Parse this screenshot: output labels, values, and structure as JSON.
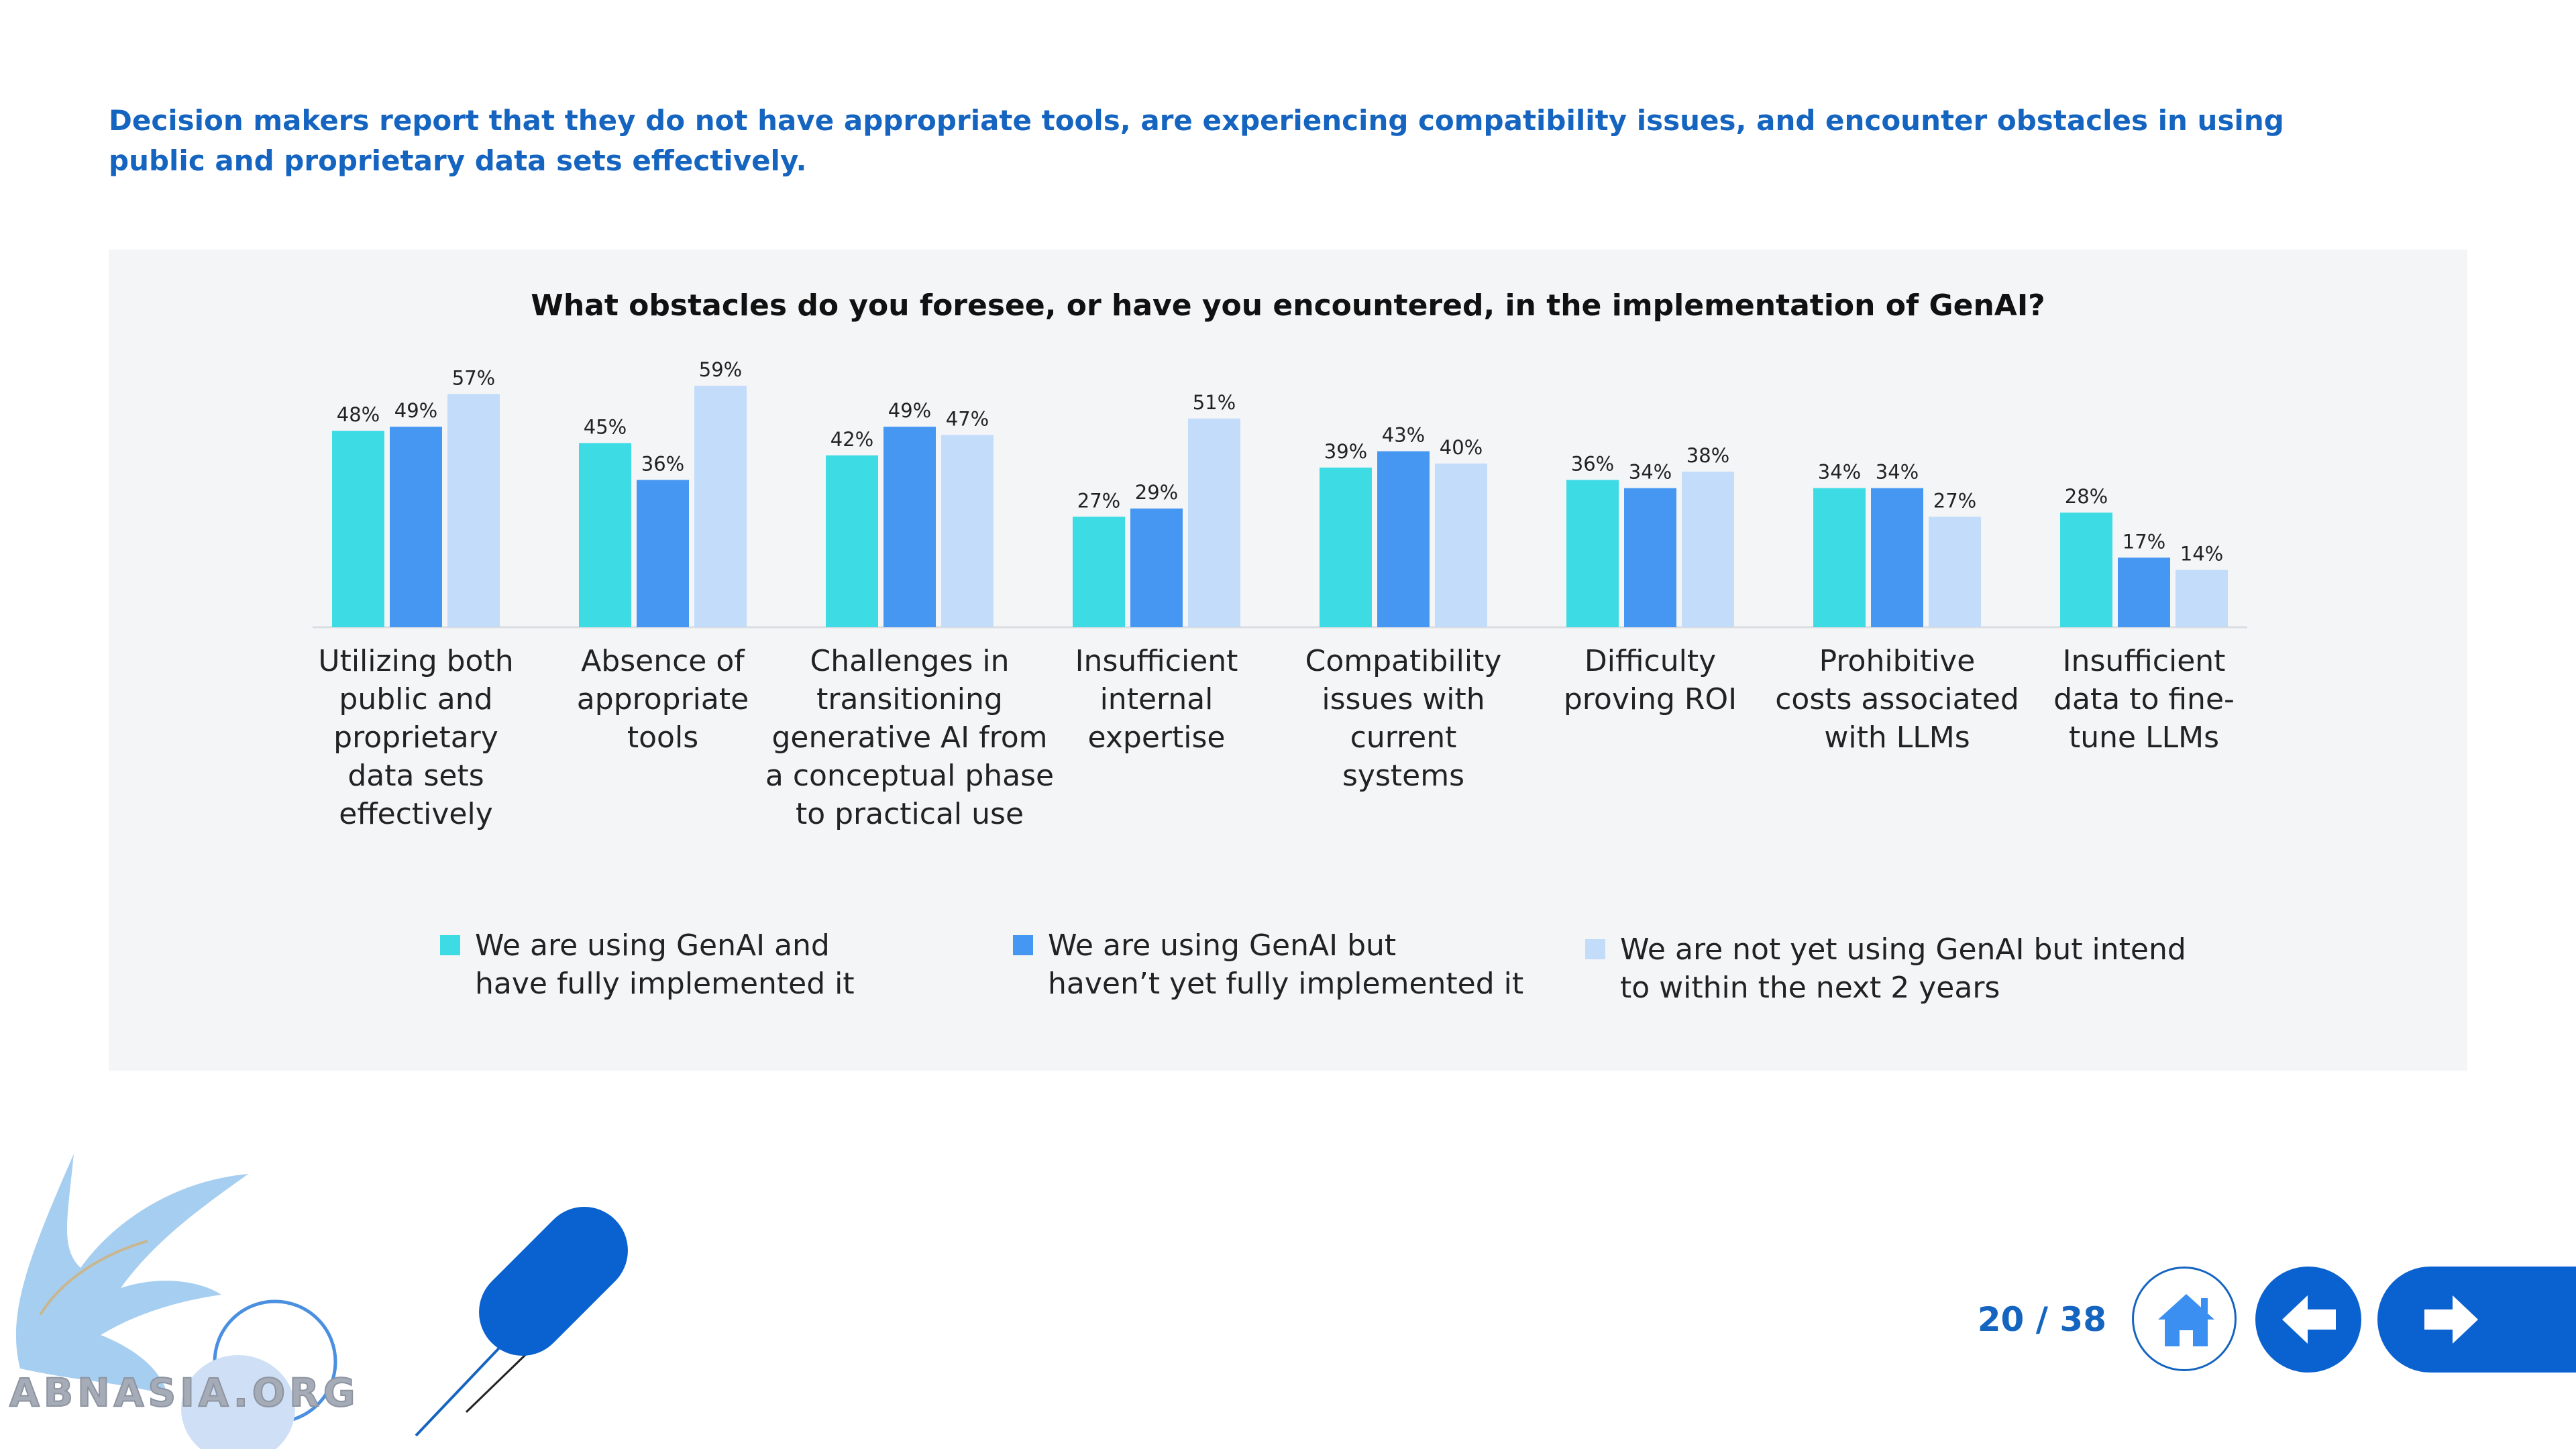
{
  "headline": "Decision makers report that they do not have appropriate tools, are experiencing compatibility issues, and encounter obstacles in using public and proprietary data sets effectively.",
  "chart_data": {
    "type": "bar",
    "title": "What obstacles do you foresee, or have you encountered, in the implementation of GenAI?",
    "categories": [
      "Utilizing both public and proprietary data sets effectively",
      "Absence of appropriate tools",
      "Challenges in transitioning generative AI from a conceptual phase to practical use",
      "Insufficient internal expertise",
      "Compatibility issues with current systems",
      "Difficulty proving ROI",
      "Prohibitive costs associated with LLMs",
      "Insufficient data to fine-tune LLMs"
    ],
    "category_lines": [
      [
        "Utilizing both",
        "public and",
        "proprietary",
        "data sets",
        "effectively"
      ],
      [
        "Absence of",
        "appropriate",
        "tools"
      ],
      [
        "Challenges in",
        "transitioning",
        "generative AI from",
        "a conceptual phase",
        "to practical use"
      ],
      [
        "Insufficient",
        "internal",
        "expertise"
      ],
      [
        "Compatibility",
        "issues with",
        "current",
        "systems"
      ],
      [
        "Difficulty",
        "proving ROI"
      ],
      [
        "Prohibitive",
        "costs associated",
        "with LLMs"
      ],
      [
        "Insufficient",
        "data to fine-",
        "tune LLMs"
      ]
    ],
    "series": [
      {
        "name": "We are using GenAI and have fully implemented it",
        "legend_lines": [
          "We are using GenAI and",
          "have fully implemented it"
        ],
        "color": "#3ddbe4",
        "values": [
          48,
          45,
          42,
          27,
          39,
          36,
          34,
          28
        ]
      },
      {
        "name": "We are using GenAI but haven’t yet fully implemented it",
        "legend_lines": [
          "We are using GenAI but",
          "haven’t yet fully implemented it"
        ],
        "color": "#4597f2",
        "values": [
          49,
          36,
          49,
          29,
          43,
          34,
          34,
          17
        ]
      },
      {
        "name": "We are not yet using GenAI but intend to within the next 2 years",
        "legend_lines": [
          "We are not yet using GenAI but intend",
          "to within the next 2 years"
        ],
        "color": "#c3dcfa",
        "values": [
          57,
          59,
          47,
          51,
          40,
          38,
          27,
          14
        ]
      }
    ],
    "value_suffix": "%",
    "ylim": [
      0,
      60
    ],
    "grid": false,
    "legend_position": "bottom"
  },
  "pager": {
    "current": "20",
    "total": "38",
    "text": "20 / 38"
  },
  "nav": {
    "home_icon": "home-icon",
    "back_icon": "arrow-left-icon",
    "next_icon": "arrow-right-icon"
  },
  "watermark": {
    "text": "ABNASIA.ORG"
  }
}
